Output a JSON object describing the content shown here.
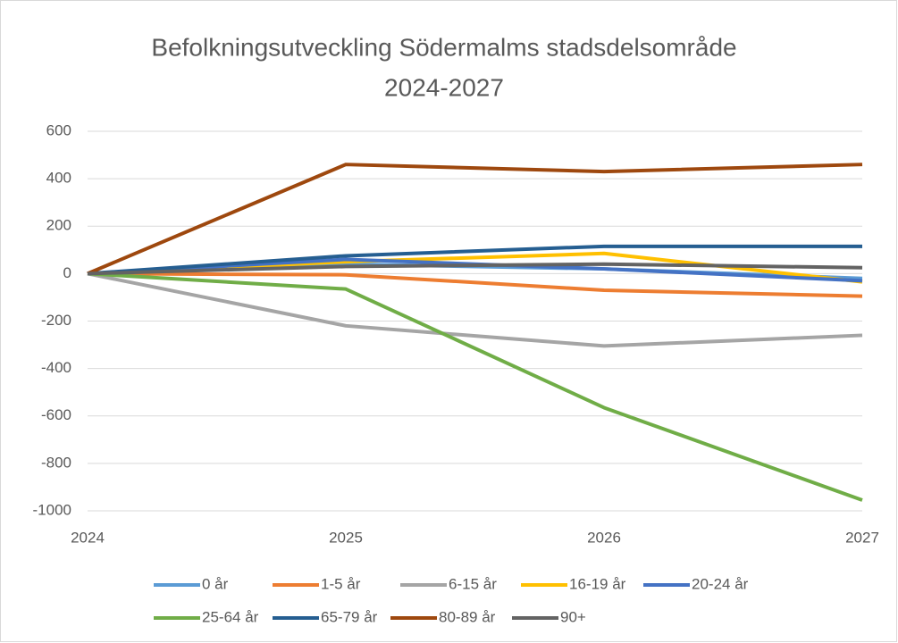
{
  "chart_data": {
    "type": "line",
    "title": [
      "Befolkningsutveckling Södermalms stadsdelsområde",
      "2024-2027"
    ],
    "categories": [
      "2024",
      "2025",
      "2026",
      "2027"
    ],
    "series": [
      {
        "name": "0 år",
        "color": "#5b9bd5",
        "values": [
          0,
          40,
          20,
          -20
        ]
      },
      {
        "name": "1-5 år",
        "color": "#ed7d31",
        "values": [
          0,
          -5,
          -70,
          -95
        ]
      },
      {
        "name": "6-15 år",
        "color": "#a5a5a5",
        "values": [
          0,
          -220,
          -305,
          -260
        ]
      },
      {
        "name": "16-19 år",
        "color": "#ffc000",
        "values": [
          0,
          50,
          85,
          -35
        ]
      },
      {
        "name": "20-24 år",
        "color": "#4472c4",
        "values": [
          0,
          60,
          20,
          -30
        ]
      },
      {
        "name": "25-64 år",
        "color": "#70ad47",
        "values": [
          0,
          -65,
          -565,
          -955
        ]
      },
      {
        "name": "65-79 år",
        "color": "#255e91",
        "values": [
          0,
          75,
          115,
          115
        ]
      },
      {
        "name": "80-89 år",
        "color": "#9e480e",
        "values": [
          0,
          460,
          430,
          460
        ]
      },
      {
        "name": "90+",
        "color": "#636363",
        "values": [
          0,
          30,
          40,
          25
        ]
      }
    ],
    "ylim": [
      -1000,
      600
    ],
    "yticks": [
      600,
      400,
      200,
      0,
      -200,
      -400,
      -600,
      -800,
      -1000
    ],
    "grid": true,
    "legend": "bottom"
  }
}
